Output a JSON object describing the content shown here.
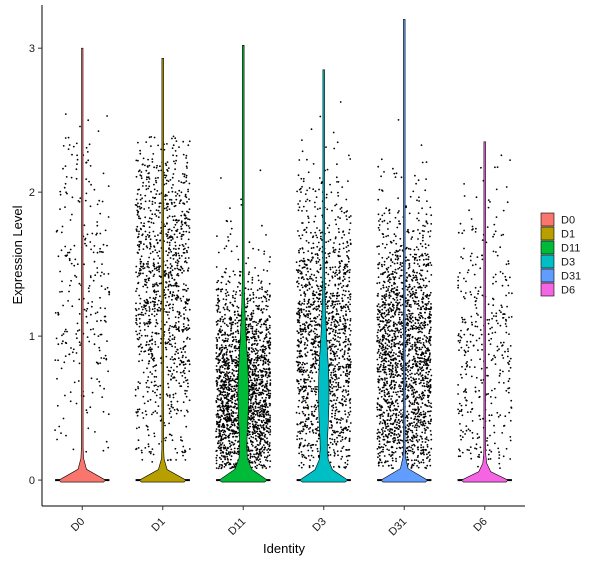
{
  "chart_data": {
    "type": "violin",
    "xlabel": "Identity",
    "ylabel": "Expression Level",
    "ylim": [
      -0.18,
      3.3
    ],
    "y_ticks": [
      "0",
      "1",
      "2",
      "3"
    ],
    "y_tick_values": [
      0,
      1,
      2,
      3
    ],
    "categories": [
      "D0",
      "D1",
      "D11",
      "D3",
      "D31",
      "D6"
    ],
    "x_tick_rotation_deg": 45,
    "legend": {
      "position": "right",
      "entries": [
        {
          "label": "D0",
          "color": "#F8766D"
        },
        {
          "label": "D1",
          "color": "#B79F00"
        },
        {
          "label": "D11",
          "color": "#00BA38"
        },
        {
          "label": "D3",
          "color": "#00BFC4"
        },
        {
          "label": "D31",
          "color": "#619CFF"
        },
        {
          "label": "D6",
          "color": "#F564E3"
        }
      ]
    },
    "series": [
      {
        "category": "D0",
        "color": "#F8766D",
        "max": 3.0,
        "density_at_zero": 1.0,
        "nonzero_points": 260,
        "nonzero_center": 1.4,
        "nonzero_spread": 0.65,
        "nonzero_max": 2.55
      },
      {
        "category": "D1",
        "color": "#B79F00",
        "max": 2.93,
        "density_at_zero": 1.0,
        "nonzero_points": 1100,
        "nonzero_center": 1.35,
        "nonzero_spread": 0.55,
        "nonzero_max": 2.4
      },
      {
        "category": "D11",
        "color": "#00BA38",
        "max": 3.02,
        "density_at_zero": 1.0,
        "nonzero_points": 2000,
        "nonzero_center": 0.65,
        "nonzero_spread": 0.4,
        "nonzero_max": 2.6
      },
      {
        "category": "D3",
        "color": "#00BFC4",
        "max": 2.85,
        "density_at_zero": 1.0,
        "nonzero_points": 1500,
        "nonzero_center": 0.95,
        "nonzero_spread": 0.55,
        "nonzero_max": 2.8
      },
      {
        "category": "D31",
        "color": "#619CFF",
        "max": 3.2,
        "density_at_zero": 1.0,
        "nonzero_points": 1900,
        "nonzero_center": 0.85,
        "nonzero_spread": 0.5,
        "nonzero_max": 2.85
      },
      {
        "category": "D6",
        "color": "#F564E3",
        "max": 2.35,
        "density_at_zero": 1.0,
        "nonzero_points": 380,
        "nonzero_center": 0.9,
        "nonzero_spread": 0.55,
        "nonzero_max": 2.3
      }
    ],
    "point_color": "#000000",
    "grid": false
  }
}
